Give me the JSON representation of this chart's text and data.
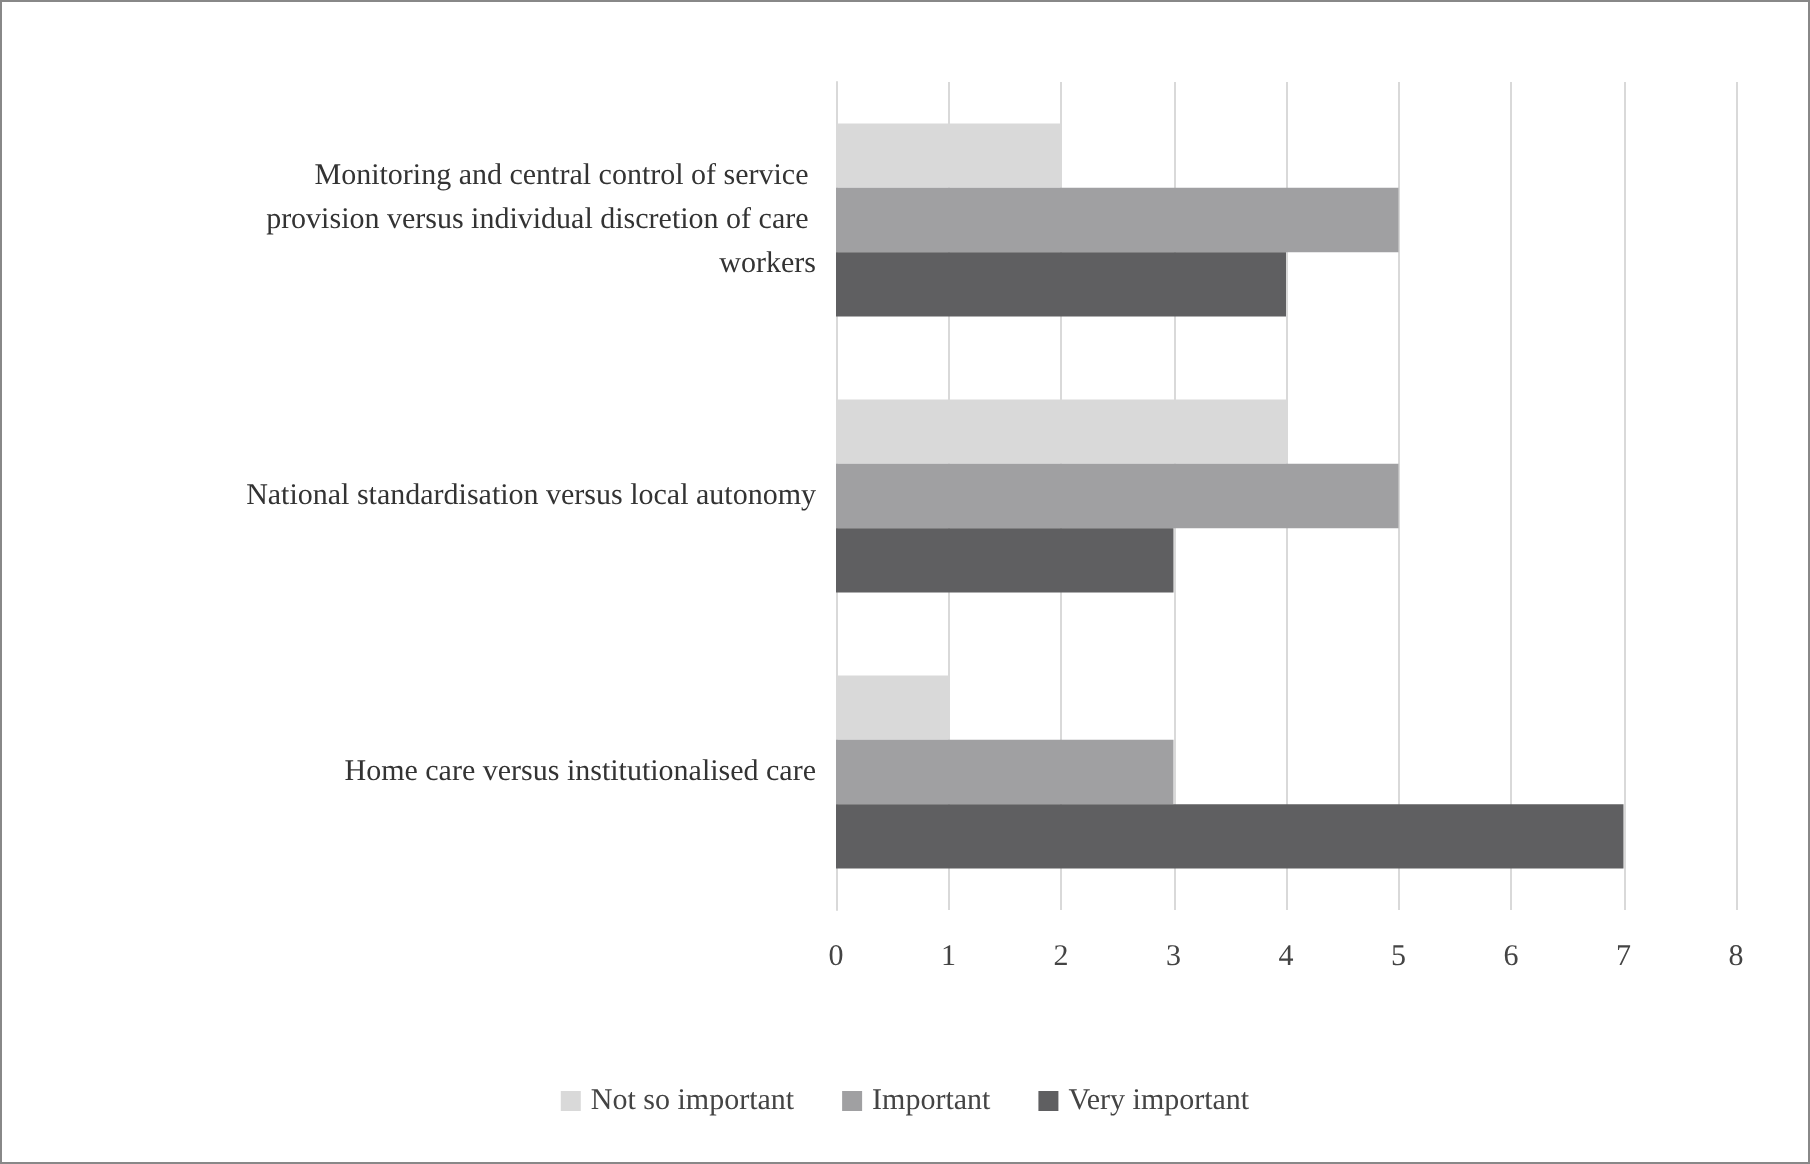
{
  "chart_data": {
    "type": "bar",
    "orientation": "horizontal",
    "categories": [
      "Monitoring and central control of service provision versus individual discretion of care workers",
      "National standardisation versus local autonomy",
      "Home care versus institutionalised care"
    ],
    "series": [
      {
        "name": "Not so important",
        "color": "#d9d9d9",
        "values": [
          2,
          4,
          1
        ]
      },
      {
        "name": "Important",
        "color": "#a0a0a2",
        "values": [
          5,
          5,
          3
        ]
      },
      {
        "name": "Very important",
        "color": "#5f5f61",
        "values": [
          4,
          3,
          7
        ]
      }
    ],
    "xlim": [
      0,
      8
    ],
    "xticks": [
      0,
      1,
      2,
      3,
      4,
      5,
      6,
      7,
      8
    ],
    "grid": "x",
    "legend": "bottom"
  }
}
